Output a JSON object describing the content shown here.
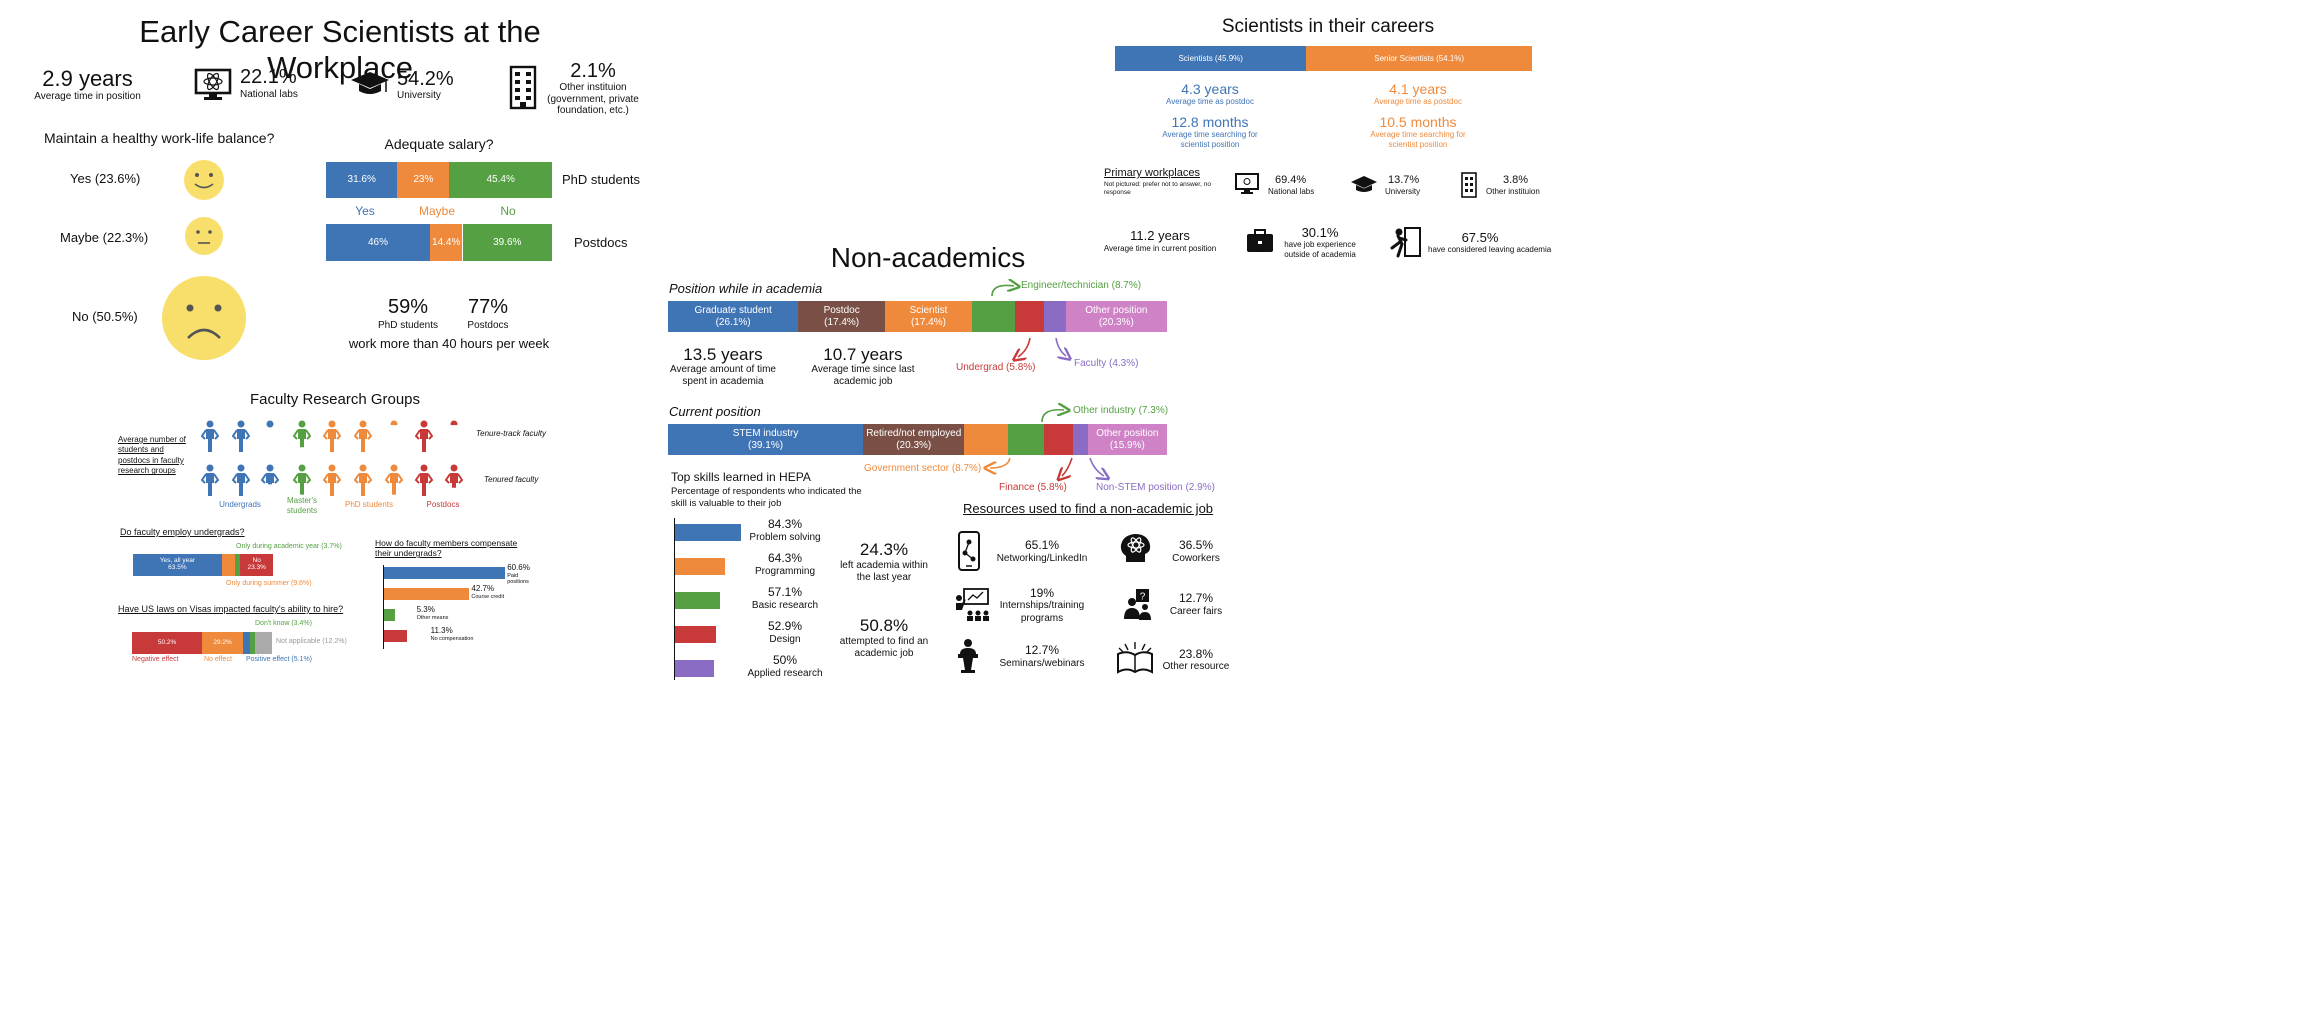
{
  "colors": {
    "blue": "#3f74b5",
    "orange": "#ef8a3c",
    "green": "#55a043",
    "red": "#c83a3a",
    "purple": "#8b6cc4",
    "brown": "#7a5046",
    "pink": "#cf82c6",
    "gray": "#aaaaaa",
    "yellow": "#f8df6b"
  },
  "left": {
    "title": "Early Career Scientists at the Workplace",
    "stats": {
      "avg_time_value": "2.9 years",
      "avg_time_label": "Average time in position",
      "labs_value": "22.1%",
      "labs_label": "National labs",
      "univ_value": "54.2%",
      "univ_label": "University",
      "other_value": "2.1%",
      "other_label": "Other instituion (government, private foundation, etc.)"
    },
    "balance": {
      "title": "Maintain a healthy work-life balance?",
      "yes": "Yes (23.6%)",
      "maybe": "Maybe (22.3%)",
      "no": "No (50.5%)"
    },
    "salary": {
      "title": "Adequate salary?",
      "yes": "Yes",
      "maybe": "Maybe",
      "no": "No"
    },
    "hours": {
      "phd_value": "59%",
      "phd_label": "PhD students",
      "postdoc_value": "77%",
      "postdoc_label": "Postdocs",
      "caption": "work more than 40 hours per week"
    },
    "groups": {
      "title": "Faculty Research Groups",
      "side_label": "Average number of students and postdocs in faculty research groups",
      "tenure_track": "Tenure-track faculty",
      "tenured": "Tenured faculty",
      "undergrads": "Undergrads",
      "masters": "Master's students",
      "phd": "PhD students",
      "postdocs": "Postdocs"
    },
    "employ": {
      "title": "Do faculty employ undergrads?",
      "academic_year": "Only during academic year (3.7%)",
      "summer": "Only during summer (9.6%)",
      "yes_label": "Yes, all year",
      "no_label": "No"
    },
    "visas": {
      "title": "Have US laws on Visas impacted faculty's ability to hire?",
      "dont_know": "Don't know (3.4%)",
      "not_applicable": "Not applicable (12.2%)",
      "negative": "Negative effect",
      "no_effect": "No effect",
      "positive": "Positive effect (5.1%)"
    },
    "compensate": {
      "title": "How do faculty members compensate their undergrads?"
    }
  },
  "right": {
    "title": "Scientists in their careers",
    "postdoc_time": {
      "sci_value": "4.3 years",
      "senior_value": "4.1 years",
      "label": "Average time as postdoc"
    },
    "searching": {
      "sci_value": "12.8 months",
      "senior_value": "10.5 months",
      "label": "Average time searching for scientist position"
    },
    "workplaces": {
      "title": "Primary workplaces",
      "note": "Not pictured: prefer not to answer, no response",
      "labs_value": "69.4%",
      "labs_label": "National labs",
      "univ_value": "13.7%",
      "univ_label": "University",
      "other_value": "3.8%",
      "other_label": "Other instituion"
    },
    "current": {
      "years_value": "11.2 years",
      "years_label": "Average time in current position",
      "exp_value": "30.1%",
      "exp_label": "have job experience outside of academia",
      "leave_value": "67.5%",
      "leave_label": "have considered leaving academia"
    }
  },
  "nonacad": {
    "title": "Non-academics",
    "position_title": "Position while in academia",
    "current_title": "Current position",
    "time_value": "13.5 years",
    "time_label": "Average amount of time spent in academia",
    "since_value": "10.7 years",
    "since_label": "Average time since last academic job",
    "callouts": {
      "engineer": "Engineer/technician (8.7%)",
      "undergrad": "Undergrad (5.8%)",
      "faculty": "Faculty (4.3%)",
      "other_industry": "Other industry (7.3%)",
      "government": "Government sector (8.7%)",
      "finance": "Finance (5.8%)",
      "nonstem": "Non-STEM position (2.9%)"
    },
    "skills": {
      "title": "Top skills learned in HEPA",
      "subtitle": "Percentage of respondents who indicated the skill is valuable to their job"
    },
    "left_value": "24.3%",
    "left_label": "left academia within the last year",
    "attempt_value": "50.8%",
    "attempt_label": "attempted to find an academic job",
    "resources": {
      "title": "Resources used to find a non-academic job",
      "networking_value": "65.1%",
      "networking_label": "Networking/LinkedIn",
      "coworkers_value": "36.5%",
      "coworkers_label": "Coworkers",
      "intern_value": "19%",
      "intern_label": "Internships/training programs",
      "fairs_value": "12.7%",
      "fairs_label": "Career fairs",
      "seminars_value": "12.7%",
      "seminars_label": "Seminars/webinars",
      "other_value": "23.8%",
      "other_label": "Other resource"
    }
  },
  "chart_data": [
    {
      "type": "bar",
      "orientation": "horizontal-stacked",
      "title": "Adequate salary?",
      "categories": [
        "PhD students",
        "Postdocs"
      ],
      "series": [
        {
          "name": "Yes",
          "values": [
            31.6,
            46
          ]
        },
        {
          "name": "Maybe",
          "values": [
            23,
            14.4
          ]
        },
        {
          "name": "No",
          "values": [
            45.4,
            39.6
          ]
        }
      ],
      "labels": [
        [
          "31.6%",
          "23%",
          "45.4%"
        ],
        [
          "46%",
          "14.4%",
          "39.6%"
        ]
      ]
    },
    {
      "type": "bar",
      "orientation": "horizontal-stacked",
      "title": "Do faculty employ undergrads?",
      "segments": [
        {
          "label": "Yes, all year",
          "value": 63.5,
          "text": "63.5%"
        },
        {
          "label": "Only during summer",
          "value": 9.6
        },
        {
          "label": "Only during academic year",
          "value": 3.7
        },
        {
          "label": "No",
          "value": 23.3,
          "text": "23.3%"
        }
      ]
    },
    {
      "type": "bar",
      "orientation": "horizontal-stacked",
      "title": "Have US laws on Visas impacted faculty's ability to hire?",
      "segments": [
        {
          "label": "Negative effect",
          "value": 50.2,
          "text": "50.2%"
        },
        {
          "label": "No effect",
          "value": 29.2,
          "text": "29.2%"
        },
        {
          "label": "Positive effect",
          "value": 5.1
        },
        {
          "label": "Don't know",
          "value": 3.4
        },
        {
          "label": "Not applicable",
          "value": 12.2
        }
      ]
    },
    {
      "type": "bar",
      "orientation": "horizontal",
      "title": "How do faculty members compensate their undergrads?",
      "categories": [
        "Paid positions",
        "Course credit",
        "Other means",
        "No compensation"
      ],
      "values": [
        60.6,
        42.7,
        5.3,
        11.3
      ],
      "labels": [
        "60.6%",
        "42.7%",
        "5.3%",
        "11.3%"
      ]
    },
    {
      "type": "bar",
      "orientation": "horizontal-stacked",
      "title": "Scientists in their careers",
      "segments": [
        {
          "label": "Scientists (45.9%)",
          "value": 45.9
        },
        {
          "label": "Senior Scientists (54.1%)",
          "value": 54.1
        }
      ]
    },
    {
      "type": "bar",
      "orientation": "horizontal-stacked",
      "title": "Position while in academia",
      "segments": [
        {
          "label": "Graduate student",
          "value": 26.1,
          "text": "(26.1%)"
        },
        {
          "label": "Postdoc",
          "value": 17.4,
          "text": "(17.4%)"
        },
        {
          "label": "Scientist",
          "value": 17.4,
          "text": "(17.4%)"
        },
        {
          "label": "Engineer/technician",
          "value": 8.7
        },
        {
          "label": "Undergrad",
          "value": 5.8
        },
        {
          "label": "Faculty",
          "value": 4.3
        },
        {
          "label": "Other position",
          "value": 20.3,
          "text": "(20.3%)"
        }
      ]
    },
    {
      "type": "bar",
      "orientation": "horizontal-stacked",
      "title": "Current position",
      "segments": [
        {
          "label": "STEM industry",
          "value": 39.1,
          "text": "(39.1%)"
        },
        {
          "label": "Retired/not employed",
          "value": 20.3,
          "text": "(20.3%)"
        },
        {
          "label": "Government sector",
          "value": 8.7
        },
        {
          "label": "Other industry",
          "value": 7.3
        },
        {
          "label": "Finance",
          "value": 5.8
        },
        {
          "label": "Non-STEM position",
          "value": 2.9
        },
        {
          "label": "Other position",
          "value": 15.9,
          "text": "(15.9%)"
        }
      ]
    },
    {
      "type": "bar",
      "orientation": "horizontal",
      "title": "Top skills learned in HEPA",
      "categories": [
        "Problem solving",
        "Programming",
        "Basic research",
        "Design",
        "Applied research"
      ],
      "values": [
        84.3,
        64.3,
        57.1,
        52.9,
        50
      ],
      "labels": [
        "84.3%",
        "64.3%",
        "57.1%",
        "52.9%",
        "50%"
      ]
    },
    {
      "type": "table",
      "title": "Faculty Research Groups",
      "columns": [
        "Undergrads",
        "Master's students",
        "PhD students",
        "Postdocs"
      ],
      "rows": [
        {
          "name": "Tenure-track faculty"
        },
        {
          "name": "Tenured faculty"
        }
      ]
    }
  ]
}
